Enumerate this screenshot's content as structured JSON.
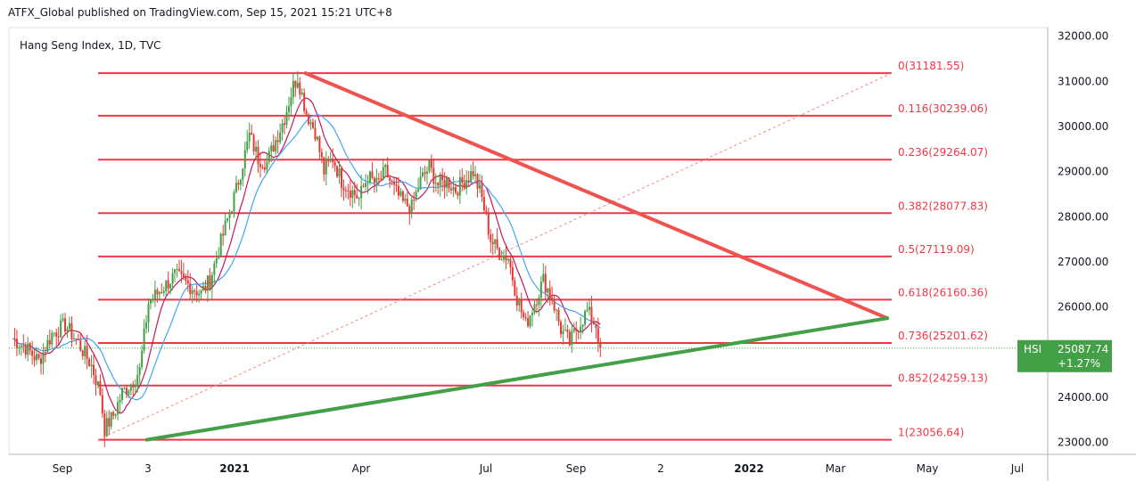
{
  "header": {
    "publisher_line": "ATFX_Global published on TradingView.com, Sep 15, 2021 15:21 UTC+8"
  },
  "colors": {
    "fib_line": "#f23645",
    "resistance": "#ef5350",
    "support": "#43a047",
    "up_candle": "#43a047",
    "down_candle": "#e53935",
    "ma_fast": "#c2185b",
    "ma_slow": "#42a5f5",
    "last_price_bg": "#43a047",
    "dotted_trend": "#f28b82"
  },
  "chart_data": {
    "type": "candlestick",
    "title": "Hang Seng Index, 1D, TVC",
    "x_ticks": [
      "Sep",
      "3",
      "2021",
      "Apr",
      "Jul",
      "Sep",
      "2",
      "2022",
      "Mar",
      "May",
      "Jul"
    ],
    "y_ticks": [
      "32000.00",
      "31000.00",
      "30000.00",
      "29000.00",
      "28000.00",
      "27000.00",
      "26000.00",
      "25000.00",
      "24000.00",
      "23000.00"
    ],
    "ylim": [
      22800,
      32200
    ],
    "grid": false,
    "fibonacci": [
      {
        "label": "0(31181.55)",
        "level": 0,
        "price": 31181.55
      },
      {
        "label": "0.116(30239.06)",
        "level": 0.116,
        "price": 30239.06
      },
      {
        "label": "0.236(29264.07)",
        "level": 0.236,
        "price": 29264.07
      },
      {
        "label": "0.382(28077.83)",
        "level": 0.382,
        "price": 28077.83
      },
      {
        "label": "0.5(27119.09)",
        "level": 0.5,
        "price": 27119.09
      },
      {
        "label": "0.618(26160.36)",
        "level": 0.618,
        "price": 26160.36
      },
      {
        "label": "0.736(25201.62)",
        "level": 0.736,
        "price": 25201.62
      },
      {
        "label": "0.852(24259.13)",
        "level": 0.852,
        "price": 24259.13
      },
      {
        "label": "1(23056.64)",
        "level": 1,
        "price": 23056.64
      }
    ],
    "last_price": {
      "symbol": "HSI",
      "price": "25087.74",
      "change": "+1.27%",
      "value": 25087.74
    },
    "trendlines": [
      {
        "name": "resistance",
        "from": {
          "date": "2021-02-18",
          "price": 31181.55
        },
        "to": {
          "date": "2022-04-01",
          "price": 25750
        }
      },
      {
        "name": "support",
        "from": {
          "date": "2020-10-30",
          "price": 23056.64
        },
        "to": {
          "date": "2022-04-01",
          "price": 25750
        }
      }
    ],
    "price_path": [
      [
        0,
        25300
      ],
      [
        6,
        25100
      ],
      [
        12,
        24800
      ],
      [
        18,
        25400
      ],
      [
        24,
        25600
      ],
      [
        30,
        25200
      ],
      [
        36,
        24700
      ],
      [
        40,
        24100
      ],
      [
        42,
        23300
      ],
      [
        46,
        23600
      ],
      [
        50,
        24100
      ],
      [
        54,
        24300
      ],
      [
        58,
        24600
      ],
      [
        62,
        26100
      ],
      [
        68,
        26400
      ],
      [
        74,
        26700
      ],
      [
        80,
        26500
      ],
      [
        86,
        26300
      ],
      [
        90,
        26600
      ],
      [
        96,
        27600
      ],
      [
        102,
        28600
      ],
      [
        108,
        29800
      ],
      [
        112,
        29300
      ],
      [
        116,
        29200
      ],
      [
        120,
        29700
      ],
      [
        124,
        30200
      ],
      [
        128,
        30900
      ],
      [
        130,
        31100
      ],
      [
        134,
        30300
      ],
      [
        138,
        29900
      ],
      [
        142,
        29000
      ],
      [
        146,
        29300
      ],
      [
        150,
        28800
      ],
      [
        154,
        28600
      ],
      [
        158,
        28400
      ],
      [
        162,
        28900
      ],
      [
        166,
        28700
      ],
      [
        170,
        29000
      ],
      [
        174,
        28600
      ],
      [
        178,
        28300
      ],
      [
        182,
        28200
      ],
      [
        186,
        28800
      ],
      [
        190,
        29100
      ],
      [
        194,
        28700
      ],
      [
        198,
        28800
      ],
      [
        202,
        28600
      ],
      [
        206,
        28800
      ],
      [
        210,
        29000
      ],
      [
        214,
        28400
      ],
      [
        218,
        27500
      ],
      [
        222,
        27200
      ],
      [
        226,
        27100
      ],
      [
        230,
        26200
      ],
      [
        234,
        25600
      ],
      [
        238,
        26100
      ],
      [
        242,
        26600
      ],
      [
        246,
        26200
      ],
      [
        250,
        25500
      ],
      [
        254,
        25200
      ],
      [
        258,
        25600
      ],
      [
        262,
        25900
      ],
      [
        266,
        25600
      ],
      [
        268,
        25090
      ]
    ]
  }
}
